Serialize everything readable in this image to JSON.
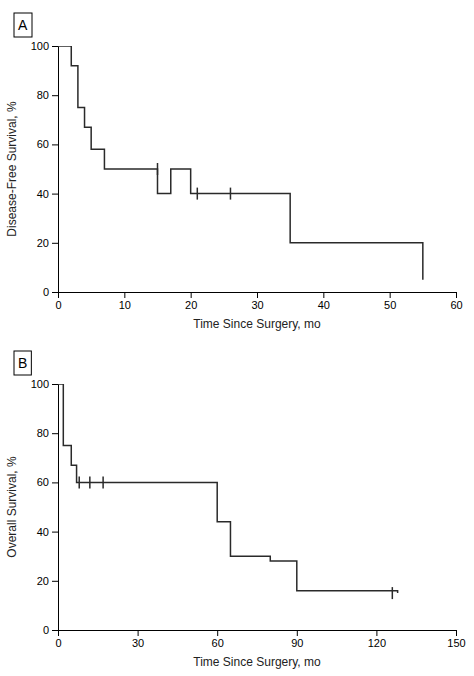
{
  "chart_data": [
    {
      "type": "step",
      "title": "A",
      "x_label": "Time Since Surgery, mo",
      "y_label": "Disease-Free Survival, %",
      "x": [
        0,
        1,
        2,
        3,
        4,
        5,
        7,
        9,
        15,
        17,
        20,
        25,
        33,
        35,
        52,
        55
      ],
      "values": [
        100,
        100,
        92,
        75,
        67,
        58,
        50,
        50,
        40,
        50,
        40,
        40,
        40,
        20,
        20,
        5
      ],
      "censor_x": [
        15,
        21,
        26
      ],
      "censor_y": [
        50,
        40,
        40
      ],
      "color": "#2a2a2a",
      "xlim": [
        0,
        60
      ],
      "ylim": [
        0,
        100
      ],
      "xticks": [
        0,
        10,
        20,
        30,
        40,
        50,
        60
      ],
      "yticks": [
        0,
        20,
        40,
        60,
        80,
        100
      ],
      "grid": false
    },
    {
      "type": "step",
      "title": "B",
      "x_label": "Time Since Surgery, mo",
      "y_label": "Overall Survival, %",
      "x": [
        0,
        1,
        2,
        4,
        5,
        7,
        57,
        60,
        65,
        80,
        90,
        125,
        128
      ],
      "values": [
        100,
        100,
        75,
        75,
        67,
        60,
        60,
        44,
        30,
        28,
        16,
        16,
        15
      ],
      "censor_x": [
        8,
        12,
        17,
        126
      ],
      "censor_y": [
        60,
        60,
        60,
        15
      ],
      "color": "#2a2a2a",
      "xlim": [
        0,
        150
      ],
      "ylim": [
        0,
        100
      ],
      "xticks": [
        0,
        30,
        60,
        90,
        120,
        150
      ],
      "yticks": [
        0,
        20,
        40,
        60,
        80,
        100
      ],
      "grid": false
    }
  ]
}
